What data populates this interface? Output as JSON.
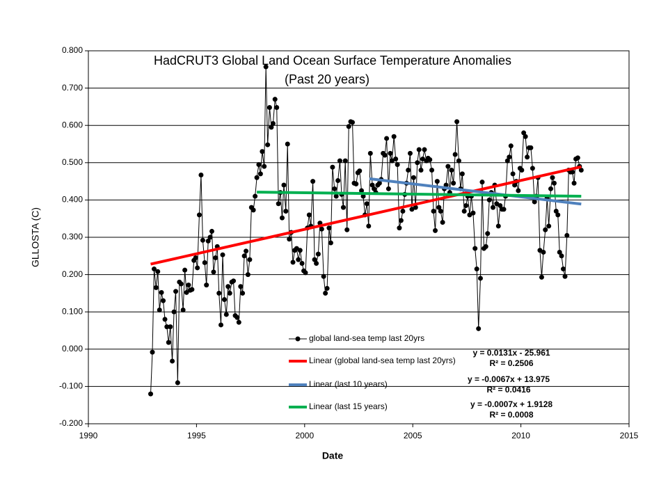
{
  "chart_data": {
    "type": "line",
    "title": "HadCRUT3 Global Land Ocean Surface Temperature Anomalies",
    "subtitle": "(Past 20 years)",
    "x_label": "Date",
    "y_label": "GLLOSTA (C)",
    "xlim": [
      1990,
      2015
    ],
    "xticks": [
      1990,
      1995,
      2000,
      2005,
      2010,
      2015
    ],
    "ylim": [
      -0.2,
      0.8
    ],
    "yticks": [
      {
        "value": -0.2,
        "label": "-0.200"
      },
      {
        "value": -0.1,
        "label": "-0.100"
      },
      {
        "value": 0,
        "label": "0.000"
      },
      {
        "value": 0.1,
        "label": "0.100"
      },
      {
        "value": 0.2,
        "label": "0.200"
      },
      {
        "value": 0.3,
        "label": "0.300"
      },
      {
        "value": 0.4,
        "label": "0.400"
      },
      {
        "value": 0.5,
        "label": "0.500"
      },
      {
        "value": 0.6,
        "label": "0.600"
      },
      {
        "value": 0.7,
        "label": "0.700"
      },
      {
        "value": 0.8,
        "label": "0.800"
      }
    ],
    "grid": true,
    "series": [
      {
        "name": "global land-sea temp last 20yrs",
        "color": "#000000",
        "marker": true,
        "x": [
          1992.88,
          1992.96,
          1993.04,
          1993.13,
          1993.21,
          1993.29,
          1993.38,
          1993.46,
          1993.54,
          1993.63,
          1993.71,
          1993.79,
          1993.88,
          1993.96,
          1994.04,
          1994.13,
          1994.21,
          1994.29,
          1994.38,
          1994.46,
          1994.54,
          1994.63,
          1994.71,
          1994.79,
          1994.88,
          1994.96,
          1995.04,
          1995.13,
          1995.21,
          1995.29,
          1995.38,
          1995.46,
          1995.54,
          1995.63,
          1995.71,
          1995.79,
          1995.88,
          1995.96,
          1996.04,
          1996.13,
          1996.21,
          1996.29,
          1996.38,
          1996.46,
          1996.54,
          1996.63,
          1996.71,
          1996.79,
          1996.88,
          1996.96,
          1997.04,
          1997.13,
          1997.21,
          1997.29,
          1997.38,
          1997.46,
          1997.54,
          1997.63,
          1997.71,
          1997.79,
          1997.88,
          1997.96,
          1998.04,
          1998.13,
          1998.21,
          1998.29,
          1998.38,
          1998.46,
          1998.54,
          1998.63,
          1998.71,
          1998.79,
          1998.88,
          1998.96,
          1999.04,
          1999.13,
          1999.21,
          1999.29,
          1999.38,
          1999.46,
          1999.54,
          1999.63,
          1999.71,
          1999.79,
          1999.88,
          1999.96,
          2000.04,
          2000.13,
          2000.21,
          2000.29,
          2000.38,
          2000.46,
          2000.54,
          2000.63,
          2000.71,
          2000.79,
          2000.88,
          2000.96,
          2001.04,
          2001.13,
          2001.21,
          2001.29,
          2001.38,
          2001.46,
          2001.54,
          2001.63,
          2001.71,
          2001.79,
          2001.88,
          2001.96,
          2002.04,
          2002.13,
          2002.21,
          2002.29,
          2002.38,
          2002.46,
          2002.54,
          2002.63,
          2002.71,
          2002.79,
          2002.88,
          2002.96,
          2003.04,
          2003.13,
          2003.21,
          2003.29,
          2003.38,
          2003.46,
          2003.54,
          2003.63,
          2003.71,
          2003.79,
          2003.88,
          2003.96,
          2004.04,
          2004.13,
          2004.21,
          2004.29,
          2004.38,
          2004.46,
          2004.54,
          2004.63,
          2004.71,
          2004.79,
          2004.88,
          2004.96,
          2005.04,
          2005.13,
          2005.21,
          2005.29,
          2005.38,
          2005.46,
          2005.54,
          2005.63,
          2005.71,
          2005.79,
          2005.88,
          2005.96,
          2006.04,
          2006.13,
          2006.21,
          2006.29,
          2006.38,
          2006.46,
          2006.54,
          2006.63,
          2006.71,
          2006.79,
          2006.88,
          2006.96,
          2007.04,
          2007.13,
          2007.21,
          2007.29,
          2007.38,
          2007.46,
          2007.54,
          2007.63,
          2007.71,
          2007.79,
          2007.88,
          2007.96,
          2008.04,
          2008.13,
          2008.21,
          2008.29,
          2008.38,
          2008.46,
          2008.54,
          2008.63,
          2008.71,
          2008.79,
          2008.88,
          2008.96,
          2009.04,
          2009.13,
          2009.21,
          2009.29,
          2009.38,
          2009.46,
          2009.54,
          2009.63,
          2009.71,
          2009.79,
          2009.88,
          2009.96,
          2010.04,
          2010.13,
          2010.21,
          2010.29,
          2010.38,
          2010.46,
          2010.54,
          2010.63,
          2010.71,
          2010.79,
          2010.88,
          2010.96,
          2011.04,
          2011.13,
          2011.21,
          2011.29,
          2011.38,
          2011.46,
          2011.54,
          2011.63,
          2011.71,
          2011.79,
          2011.88,
          2011.96,
          2012.04,
          2012.13,
          2012.21,
          2012.29,
          2012.38,
          2012.46,
          2012.54,
          2012.63,
          2012.71,
          2012.79
        ],
        "values": [
          -0.12,
          -0.008,
          0.215,
          0.165,
          0.208,
          0.105,
          0.152,
          0.13,
          0.08,
          0.06,
          0.018,
          0.06,
          -0.032,
          0.1,
          0.155,
          -0.09,
          0.18,
          0.175,
          0.105,
          0.212,
          0.152,
          0.172,
          0.158,
          0.16,
          0.238,
          0.245,
          0.218,
          0.36,
          0.467,
          0.292,
          0.232,
          0.172,
          0.29,
          0.3,
          0.316,
          0.207,
          0.245,
          0.275,
          0.15,
          0.065,
          0.253,
          0.133,
          0.093,
          0.168,
          0.15,
          0.18,
          0.183,
          0.09,
          0.085,
          0.072,
          0.168,
          0.15,
          0.25,
          0.263,
          0.2,
          0.24,
          0.38,
          0.373,
          0.41,
          0.46,
          0.495,
          0.47,
          0.53,
          0.49,
          0.757,
          0.548,
          0.648,
          0.595,
          0.605,
          0.67,
          0.648,
          0.39,
          0.42,
          0.352,
          0.44,
          0.37,
          0.55,
          0.295,
          0.313,
          0.233,
          0.265,
          0.27,
          0.24,
          0.265,
          0.23,
          0.21,
          0.205,
          0.325,
          0.36,
          0.33,
          0.45,
          0.24,
          0.23,
          0.255,
          0.338,
          0.322,
          0.195,
          0.15,
          0.163,
          0.325,
          0.285,
          0.488,
          0.43,
          0.41,
          0.452,
          0.505,
          0.415,
          0.38,
          0.505,
          0.32,
          0.597,
          0.61,
          0.608,
          0.445,
          0.443,
          0.473,
          0.478,
          0.425,
          0.41,
          0.36,
          0.39,
          0.33,
          0.525,
          0.44,
          0.43,
          0.42,
          0.44,
          0.445,
          0.455,
          0.525,
          0.52,
          0.565,
          0.43,
          0.525,
          0.505,
          0.57,
          0.51,
          0.495,
          0.325,
          0.345,
          0.37,
          0.415,
          0.445,
          0.48,
          0.525,
          0.375,
          0.46,
          0.38,
          0.5,
          0.535,
          0.48,
          0.51,
          0.535,
          0.505,
          0.512,
          0.508,
          0.48,
          0.37,
          0.318,
          0.45,
          0.38,
          0.37,
          0.34,
          0.43,
          0.44,
          0.49,
          0.42,
          0.48,
          0.445,
          0.522,
          0.61,
          0.505,
          0.43,
          0.47,
          0.37,
          0.385,
          0.41,
          0.36,
          0.41,
          0.365,
          0.27,
          0.215,
          0.055,
          0.19,
          0.448,
          0.27,
          0.275,
          0.31,
          0.4,
          0.42,
          0.38,
          0.44,
          0.39,
          0.33,
          0.385,
          0.375,
          0.375,
          0.41,
          0.505,
          0.515,
          0.545,
          0.47,
          0.44,
          0.45,
          0.425,
          0.485,
          0.48,
          0.58,
          0.57,
          0.515,
          0.54,
          0.54,
          0.485,
          0.395,
          0.41,
          0.46,
          0.265,
          0.193,
          0.26,
          0.32,
          0.405,
          0.33,
          0.43,
          0.46,
          0.445,
          0.37,
          0.36,
          0.26,
          0.25,
          0.215,
          0.195,
          0.305,
          0.48,
          0.475,
          0.475,
          0.445,
          0.51,
          0.513,
          0.49,
          0.48
        ]
      },
      {
        "name": "Linear (global land-sea temp last 20yrs)",
        "color": "#ff0000",
        "marker": false,
        "x": [
          1992.88,
          2012.79
        ],
        "values": [
          0.228,
          0.489
        ]
      },
      {
        "name": "Linear (last 10 years)",
        "color": "#4f81bd",
        "marker": false,
        "x": [
          2003.0,
          2012.79
        ],
        "values": [
          0.457,
          0.389
        ]
      },
      {
        "name": "Linear (last 15 years)",
        "color": "#00b050",
        "marker": false,
        "x": [
          1997.79,
          2012.79
        ],
        "values": [
          0.421,
          0.41
        ]
      }
    ],
    "annotations": [
      {
        "text": "y = 0.0131x  - 25.961",
        "color": "#ff0000"
      },
      {
        "text": "R² = 0.2506",
        "color": "#ff0000"
      },
      {
        "text": "y = -0.0067x  + 13.975",
        "color": "#00b0f0"
      },
      {
        "text": "R² = 0.0416",
        "color": "#00b0f0"
      },
      {
        "text": "y = -0.0007x  + 1.9128",
        "color": "#00a050"
      },
      {
        "text": "R² = 0.0008",
        "color": "#00a050"
      }
    ]
  }
}
